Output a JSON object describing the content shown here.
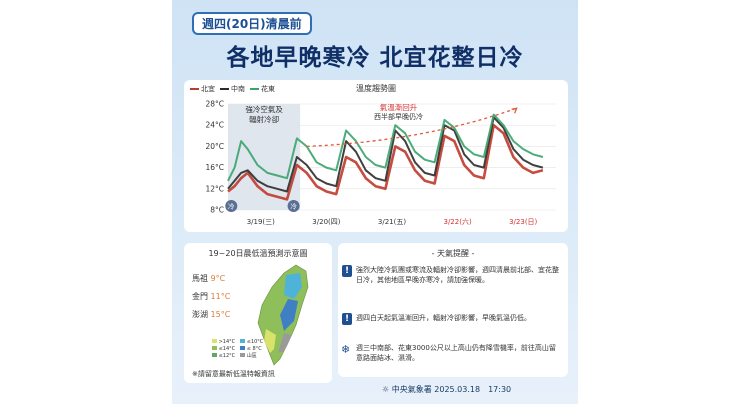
{
  "header": {
    "date_label": "週四(20日)清晨前",
    "headline": "各地早晚寒冷 北宜花整日冷"
  },
  "chart_panel": {
    "legend": [
      {
        "name": "北宜",
        "color": "#c0392b"
      },
      {
        "name": "中南",
        "color": "#2b2b2b"
      },
      {
        "name": "花東",
        "color": "#3aa36b"
      }
    ],
    "annotations": {
      "cold_air_line1": "強冷空氣及",
      "cold_air_line2": "輻射冷卻",
      "warming": "氣溫漸回升",
      "warming_sub": "西半部早晚仍冷",
      "cold_badge": "冷"
    },
    "date_colors": {
      "weekday": "#333333",
      "weekend": "#d0312d"
    }
  },
  "chart_data": {
    "type": "line",
    "title": "溫度趨勢圖",
    "ylim": [
      8,
      28
    ],
    "y_ticks": [
      "8°C",
      "12°C",
      "16°C",
      "20°C",
      "24°C",
      "28°C"
    ],
    "x_tick_labels": [
      "3/19(三)",
      "3/20(四)",
      "3/21(五)",
      "3/22(六)",
      "3/23(日)"
    ],
    "x_range": [
      0,
      5
    ],
    "series": [
      {
        "name": "北宜",
        "color": "#c0392b",
        "x": [
          0,
          0.1,
          0.2,
          0.3,
          0.45,
          0.6,
          0.75,
          0.9,
          1.05,
          1.2,
          1.35,
          1.5,
          1.65,
          1.8,
          1.95,
          2.1,
          2.25,
          2.4,
          2.55,
          2.7,
          2.85,
          3.0,
          3.15,
          3.3,
          3.45,
          3.6,
          3.75,
          3.9,
          4.05,
          4.2,
          4.35,
          4.5,
          4.65,
          4.8
        ],
        "y": [
          11.5,
          12.5,
          14,
          15,
          12.5,
          11,
          10.5,
          10,
          16.5,
          15,
          12.5,
          11.5,
          11,
          18,
          17,
          14,
          12.5,
          12,
          20,
          19,
          15.5,
          13.5,
          13,
          22,
          21,
          16.5,
          14.5,
          14,
          24,
          22.5,
          18,
          16,
          15,
          15.5
        ]
      },
      {
        "name": "中南",
        "color": "#2b2b2b",
        "x": [
          0,
          0.1,
          0.2,
          0.3,
          0.45,
          0.6,
          0.75,
          0.9,
          1.05,
          1.2,
          1.35,
          1.5,
          1.65,
          1.8,
          1.95,
          2.1,
          2.25,
          2.4,
          2.55,
          2.7,
          2.85,
          3.0,
          3.15,
          3.3,
          3.45,
          3.6,
          3.75,
          3.9,
          4.05,
          4.2,
          4.35,
          4.5,
          4.65,
          4.8
        ],
        "y": [
          12,
          13.5,
          15,
          15.5,
          13.5,
          12.5,
          12,
          11.5,
          18,
          16.5,
          14,
          13,
          12.5,
          21,
          19,
          15.5,
          14,
          13.5,
          23,
          21,
          17,
          15,
          14.5,
          24,
          23,
          18.5,
          16.5,
          16,
          25.5,
          23.5,
          19.5,
          17.5,
          16.5,
          16
        ]
      },
      {
        "name": "花東",
        "color": "#3aa36b",
        "x": [
          0,
          0.1,
          0.2,
          0.3,
          0.45,
          0.6,
          0.75,
          0.9,
          1.05,
          1.2,
          1.35,
          1.5,
          1.65,
          1.8,
          1.95,
          2.1,
          2.25,
          2.4,
          2.55,
          2.7,
          2.85,
          3.0,
          3.15,
          3.3,
          3.45,
          3.6,
          3.75,
          3.9,
          4.05,
          4.2,
          4.35,
          4.5,
          4.65,
          4.8
        ],
        "y": [
          13.5,
          16,
          21,
          19.5,
          16.5,
          15,
          14.5,
          14,
          21.5,
          20,
          17,
          16,
          15.5,
          23,
          21,
          18,
          16.5,
          16,
          24,
          22.5,
          19,
          17.5,
          17,
          25,
          23.5,
          20,
          18.5,
          18,
          26,
          24,
          21,
          19.5,
          18.5,
          18
        ]
      }
    ],
    "grid": true,
    "legend_position": "top-left"
  },
  "map_panel": {
    "title": "19~20日晨低溫預測示意圖",
    "islands": [
      {
        "name": "馬祖",
        "temp": "9°C"
      },
      {
        "name": "金門",
        "temp": "11°C"
      },
      {
        "name": "澎湖",
        "temp": "15°C"
      }
    ],
    "legend": [
      ">14°C",
      "≤10°C",
      "≤14°C",
      "≤ 8°C",
      "≤12°C",
      "山區"
    ],
    "note": "※請留意最新低溫特報資訊"
  },
  "notice_panel": {
    "title": "天氣提醒",
    "items": [
      {
        "icon": "warning-icon",
        "text": "強烈大陸冷氣團或寒流及輻射冷卻影響，週四清晨前北部、宜花整日冷，其他地區早晚亦寒冷，請加強保暖。"
      },
      {
        "icon": "warning-icon",
        "text": "週四白天起氣溫漸回升，輻射冷卻影響，早晚氣溫仍低。"
      },
      {
        "icon": "snowflake-icon",
        "text": "週三中南部、花東3000公尺以上高山仍有降雪機率，前往高山留意路面結冰、濕滑。"
      }
    ]
  },
  "footer": {
    "agency": "中央氣象署",
    "timestamp": "2025.03.18　17:30"
  }
}
